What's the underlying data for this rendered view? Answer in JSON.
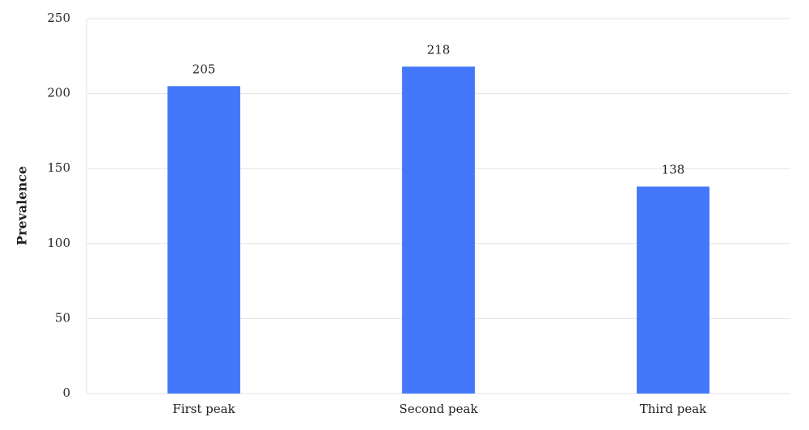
{
  "chart_data": {
    "type": "bar",
    "y_label": "Prevalence",
    "categories": [
      "First peak",
      "Second peak",
      "Third peak"
    ],
    "values": [
      205,
      218,
      138
    ],
    "color": "#4478fb",
    "ylim": [
      0,
      250
    ],
    "yticks": [
      0,
      50,
      100,
      150,
      200,
      250
    ],
    "grid": true
  }
}
